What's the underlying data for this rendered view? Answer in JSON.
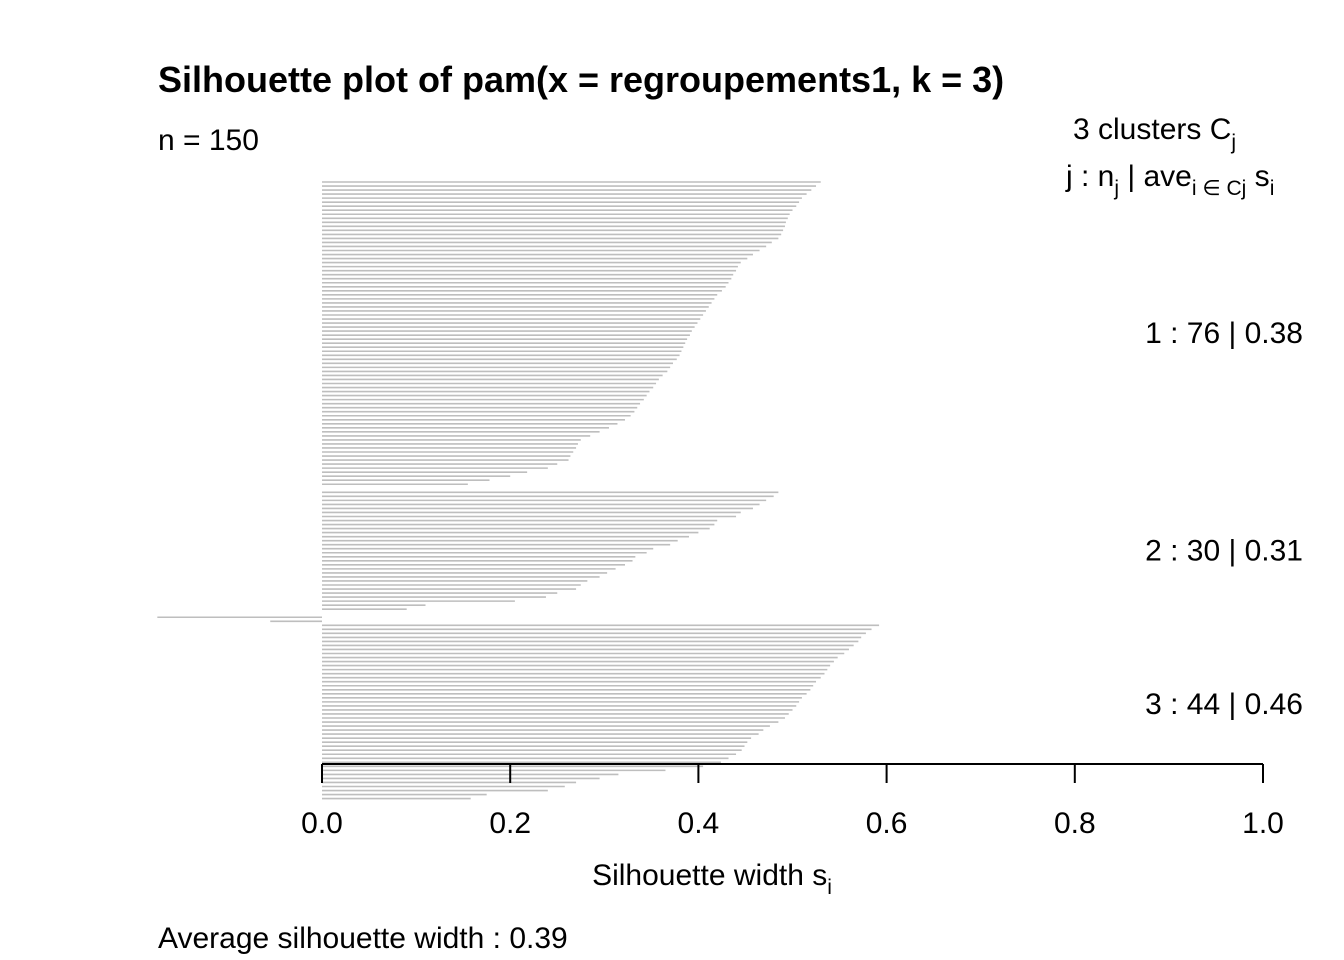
{
  "chart_data": {
    "type": "bar",
    "orientation": "horizontal",
    "title": "Silhouette plot of pam(x = regroupements1, k = 3)",
    "n_label": "n = 150",
    "header": {
      "line1_main": "3  clusters  C",
      "line1_sub": "j",
      "line2_a": "j :  n",
      "line2_a_sub": "j",
      "line2_b": " | ave",
      "line2_b_sub": "i ∈ Cj",
      "line2_c": "  s",
      "line2_c_sub": "i"
    },
    "xlabel_main": "Silhouette width s",
    "xlabel_sub": "i",
    "footer": "Average silhouette width :  0.39",
    "xlim": [
      0,
      1
    ],
    "xticks": [
      "0.0",
      "0.2",
      "0.4",
      "0.6",
      "0.8",
      "1.0"
    ],
    "bar_color": "#bebebe",
    "clusters": [
      {
        "label": "1 :   76  |  0.38",
        "size": 76,
        "avg": 0.38,
        "values": [
          0.53,
          0.525,
          0.52,
          0.515,
          0.51,
          0.507,
          0.504,
          0.5,
          0.497,
          0.495,
          0.493,
          0.492,
          0.49,
          0.488,
          0.485,
          0.478,
          0.472,
          0.465,
          0.458,
          0.452,
          0.445,
          0.442,
          0.44,
          0.437,
          0.435,
          0.432,
          0.429,
          0.425,
          0.42,
          0.417,
          0.414,
          0.411,
          0.408,
          0.405,
          0.402,
          0.399,
          0.396,
          0.393,
          0.391,
          0.388,
          0.386,
          0.384,
          0.382,
          0.38,
          0.377,
          0.373,
          0.37,
          0.367,
          0.362,
          0.358,
          0.355,
          0.352,
          0.348,
          0.345,
          0.342,
          0.338,
          0.335,
          0.332,
          0.328,
          0.322,
          0.314,
          0.305,
          0.295,
          0.285,
          0.275,
          0.272,
          0.27,
          0.267,
          0.264,
          0.262,
          0.25,
          0.24,
          0.218,
          0.2,
          0.178,
          0.155
        ]
      },
      {
        "label": "2 :   30  |  0.31",
        "size": 30,
        "avg": 0.31,
        "values": [
          0.485,
          0.48,
          0.472,
          0.465,
          0.458,
          0.445,
          0.44,
          0.42,
          0.417,
          0.412,
          0.4,
          0.39,
          0.378,
          0.37,
          0.352,
          0.345,
          0.333,
          0.33,
          0.322,
          0.312,
          0.303,
          0.295,
          0.282,
          0.275,
          0.27,
          0.25,
          0.238,
          0.205,
          0.11,
          0.09
        ]
      },
      {
        "label": "3 :   44  |  0.46",
        "size": 44,
        "avg": 0.46,
        "values": [
          -0.175,
          -0.055,
          0.592,
          0.584,
          0.578,
          0.573,
          0.57,
          0.565,
          0.56,
          0.555,
          0.548,
          0.544,
          0.54,
          0.537,
          0.534,
          0.53,
          0.525,
          0.522,
          0.519,
          0.515,
          0.51,
          0.507,
          0.504,
          0.5,
          0.496,
          0.492,
          0.485,
          0.476,
          0.469,
          0.464,
          0.456,
          0.452,
          0.449,
          0.446,
          0.44,
          0.432,
          0.424,
          0.405,
          0.365,
          0.315,
          0.295,
          0.27,
          0.258,
          0.24
        ]
      }
    ],
    "extra_bars_tail": [
      0.175,
      0.158
    ]
  }
}
